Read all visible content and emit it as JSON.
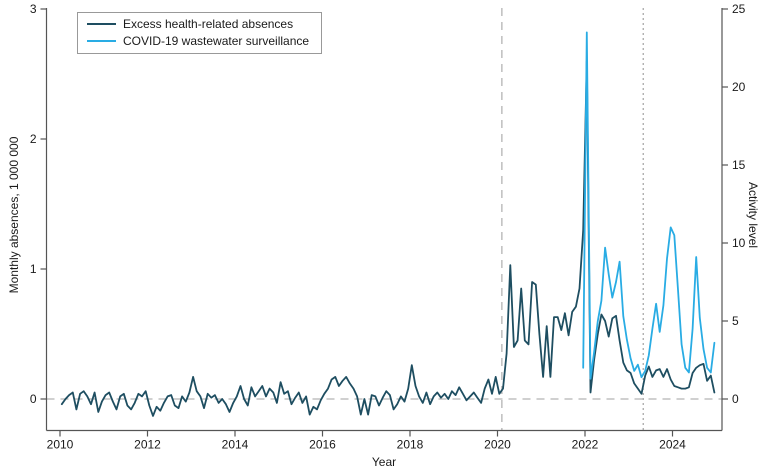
{
  "figure_title": "",
  "chart_data": {
    "type": "line",
    "title": "",
    "xlabel": "Year",
    "ylabel_left": "Monthly absences, 1 000 000",
    "ylabel_right": "Activity level",
    "x_axis": {
      "ticks": [
        2010,
        2012,
        2014,
        2016,
        2018,
        2020,
        2022,
        2024
      ],
      "range": [
        2009.7,
        2025.15
      ]
    },
    "y_left_axis": {
      "ticks": [
        0,
        1,
        2,
        3
      ],
      "range": [
        -0.24,
        3
      ]
    },
    "y_right_axis": {
      "ticks": [
        0,
        5,
        10,
        15,
        20,
        25
      ],
      "range": [
        -2.0,
        25
      ]
    },
    "grid": false,
    "legend_position": "top-left",
    "reference_lines": {
      "horizontal_dashed_at_left_value": 0,
      "vertical_dashed_years": [
        2020.1,
        2023.33
      ]
    },
    "colors": {
      "excess_absences": "#1e4e61",
      "wastewater": "#29ace4",
      "axis": "#555555",
      "dash_gray": "#b3b3b3",
      "dot_gray": "#909090",
      "text": "#1a1a1a"
    },
    "series": [
      {
        "name": "Excess health-related absences",
        "axis": "left",
        "color": "#1e4e61",
        "start_year_decimal": 2010.0417,
        "step_years": 0.083333,
        "values": [
          -0.04,
          0.0,
          0.03,
          0.05,
          -0.08,
          0.04,
          0.06,
          0.02,
          -0.04,
          0.05,
          -0.1,
          -0.02,
          0.03,
          0.05,
          -0.02,
          -0.08,
          0.02,
          0.04,
          -0.05,
          -0.08,
          -0.03,
          0.04,
          0.02,
          0.06,
          -0.05,
          -0.13,
          -0.06,
          -0.09,
          -0.03,
          0.02,
          0.03,
          -0.05,
          -0.07,
          0.02,
          -0.02,
          0.05,
          0.17,
          0.06,
          0.02,
          -0.07,
          0.04,
          0.01,
          0.03,
          -0.03,
          0.0,
          -0.04,
          -0.1,
          -0.03,
          0.02,
          0.1,
          0.0,
          -0.05,
          0.09,
          0.02,
          0.06,
          0.1,
          0.02,
          0.08,
          0.05,
          -0.03,
          0.13,
          0.04,
          0.06,
          -0.04,
          0.01,
          0.05,
          -0.03,
          0.02,
          -0.12,
          -0.06,
          -0.08,
          -0.01,
          0.04,
          0.08,
          0.15,
          0.17,
          0.1,
          0.14,
          0.17,
          0.12,
          0.08,
          0.02,
          -0.12,
          0.0,
          -0.12,
          0.03,
          0.02,
          -0.05,
          0.01,
          0.06,
          0.03,
          -0.08,
          -0.04,
          0.02,
          -0.02,
          0.08,
          0.26,
          0.1,
          0.02,
          -0.03,
          0.05,
          -0.04,
          0.02,
          0.05,
          0.01,
          0.04,
          0.0,
          0.06,
          0.03,
          0.09,
          0.04,
          -0.01,
          0.02,
          0.05,
          0.01,
          -0.03,
          0.08,
          0.15,
          0.04,
          0.17,
          0.04,
          0.08,
          0.35,
          1.03,
          0.4,
          0.45,
          0.85,
          0.45,
          0.42,
          0.9,
          0.88,
          0.5,
          0.17,
          0.56,
          0.17,
          0.63,
          0.63,
          0.53,
          0.66,
          0.49,
          0.67,
          0.71,
          0.85,
          1.3,
          2.6,
          0.05,
          0.3,
          0.5,
          0.65,
          0.6,
          0.48,
          0.62,
          0.64,
          0.45,
          0.28,
          0.22,
          0.2,
          0.12,
          0.08,
          0.04,
          0.18,
          0.25,
          0.17,
          0.22,
          0.23,
          0.17,
          0.23,
          0.15,
          0.1,
          0.09,
          0.08,
          0.08,
          0.09,
          0.2,
          0.24,
          0.26,
          0.27,
          0.14,
          0.18,
          0.05
        ]
      },
      {
        "name": "COVID-19 wastewater surveillance",
        "axis": "right",
        "color": "#29ace4",
        "start_year_decimal": 2021.9583,
        "step_years": 0.083333,
        "values": [
          2.0,
          23.5,
          1.3,
          3.0,
          5.0,
          6.3,
          9.7,
          8.0,
          6.5,
          7.5,
          8.8,
          5.3,
          3.8,
          2.6,
          1.8,
          2.2,
          1.4,
          1.8,
          2.8,
          4.5,
          6.1,
          4.3,
          6.0,
          9.0,
          11.0,
          10.5,
          7.0,
          3.5,
          2.0,
          1.7,
          4.5,
          9.1,
          5.2,
          3.2,
          2.0,
          1.7,
          3.6
        ]
      }
    ]
  },
  "legend": {
    "items": [
      {
        "label": "Excess health-related absences",
        "swatch": "line-swatch-dark"
      },
      {
        "label": "COVID-19 wastewater surveillance",
        "swatch": "line-swatch-blue"
      }
    ]
  }
}
